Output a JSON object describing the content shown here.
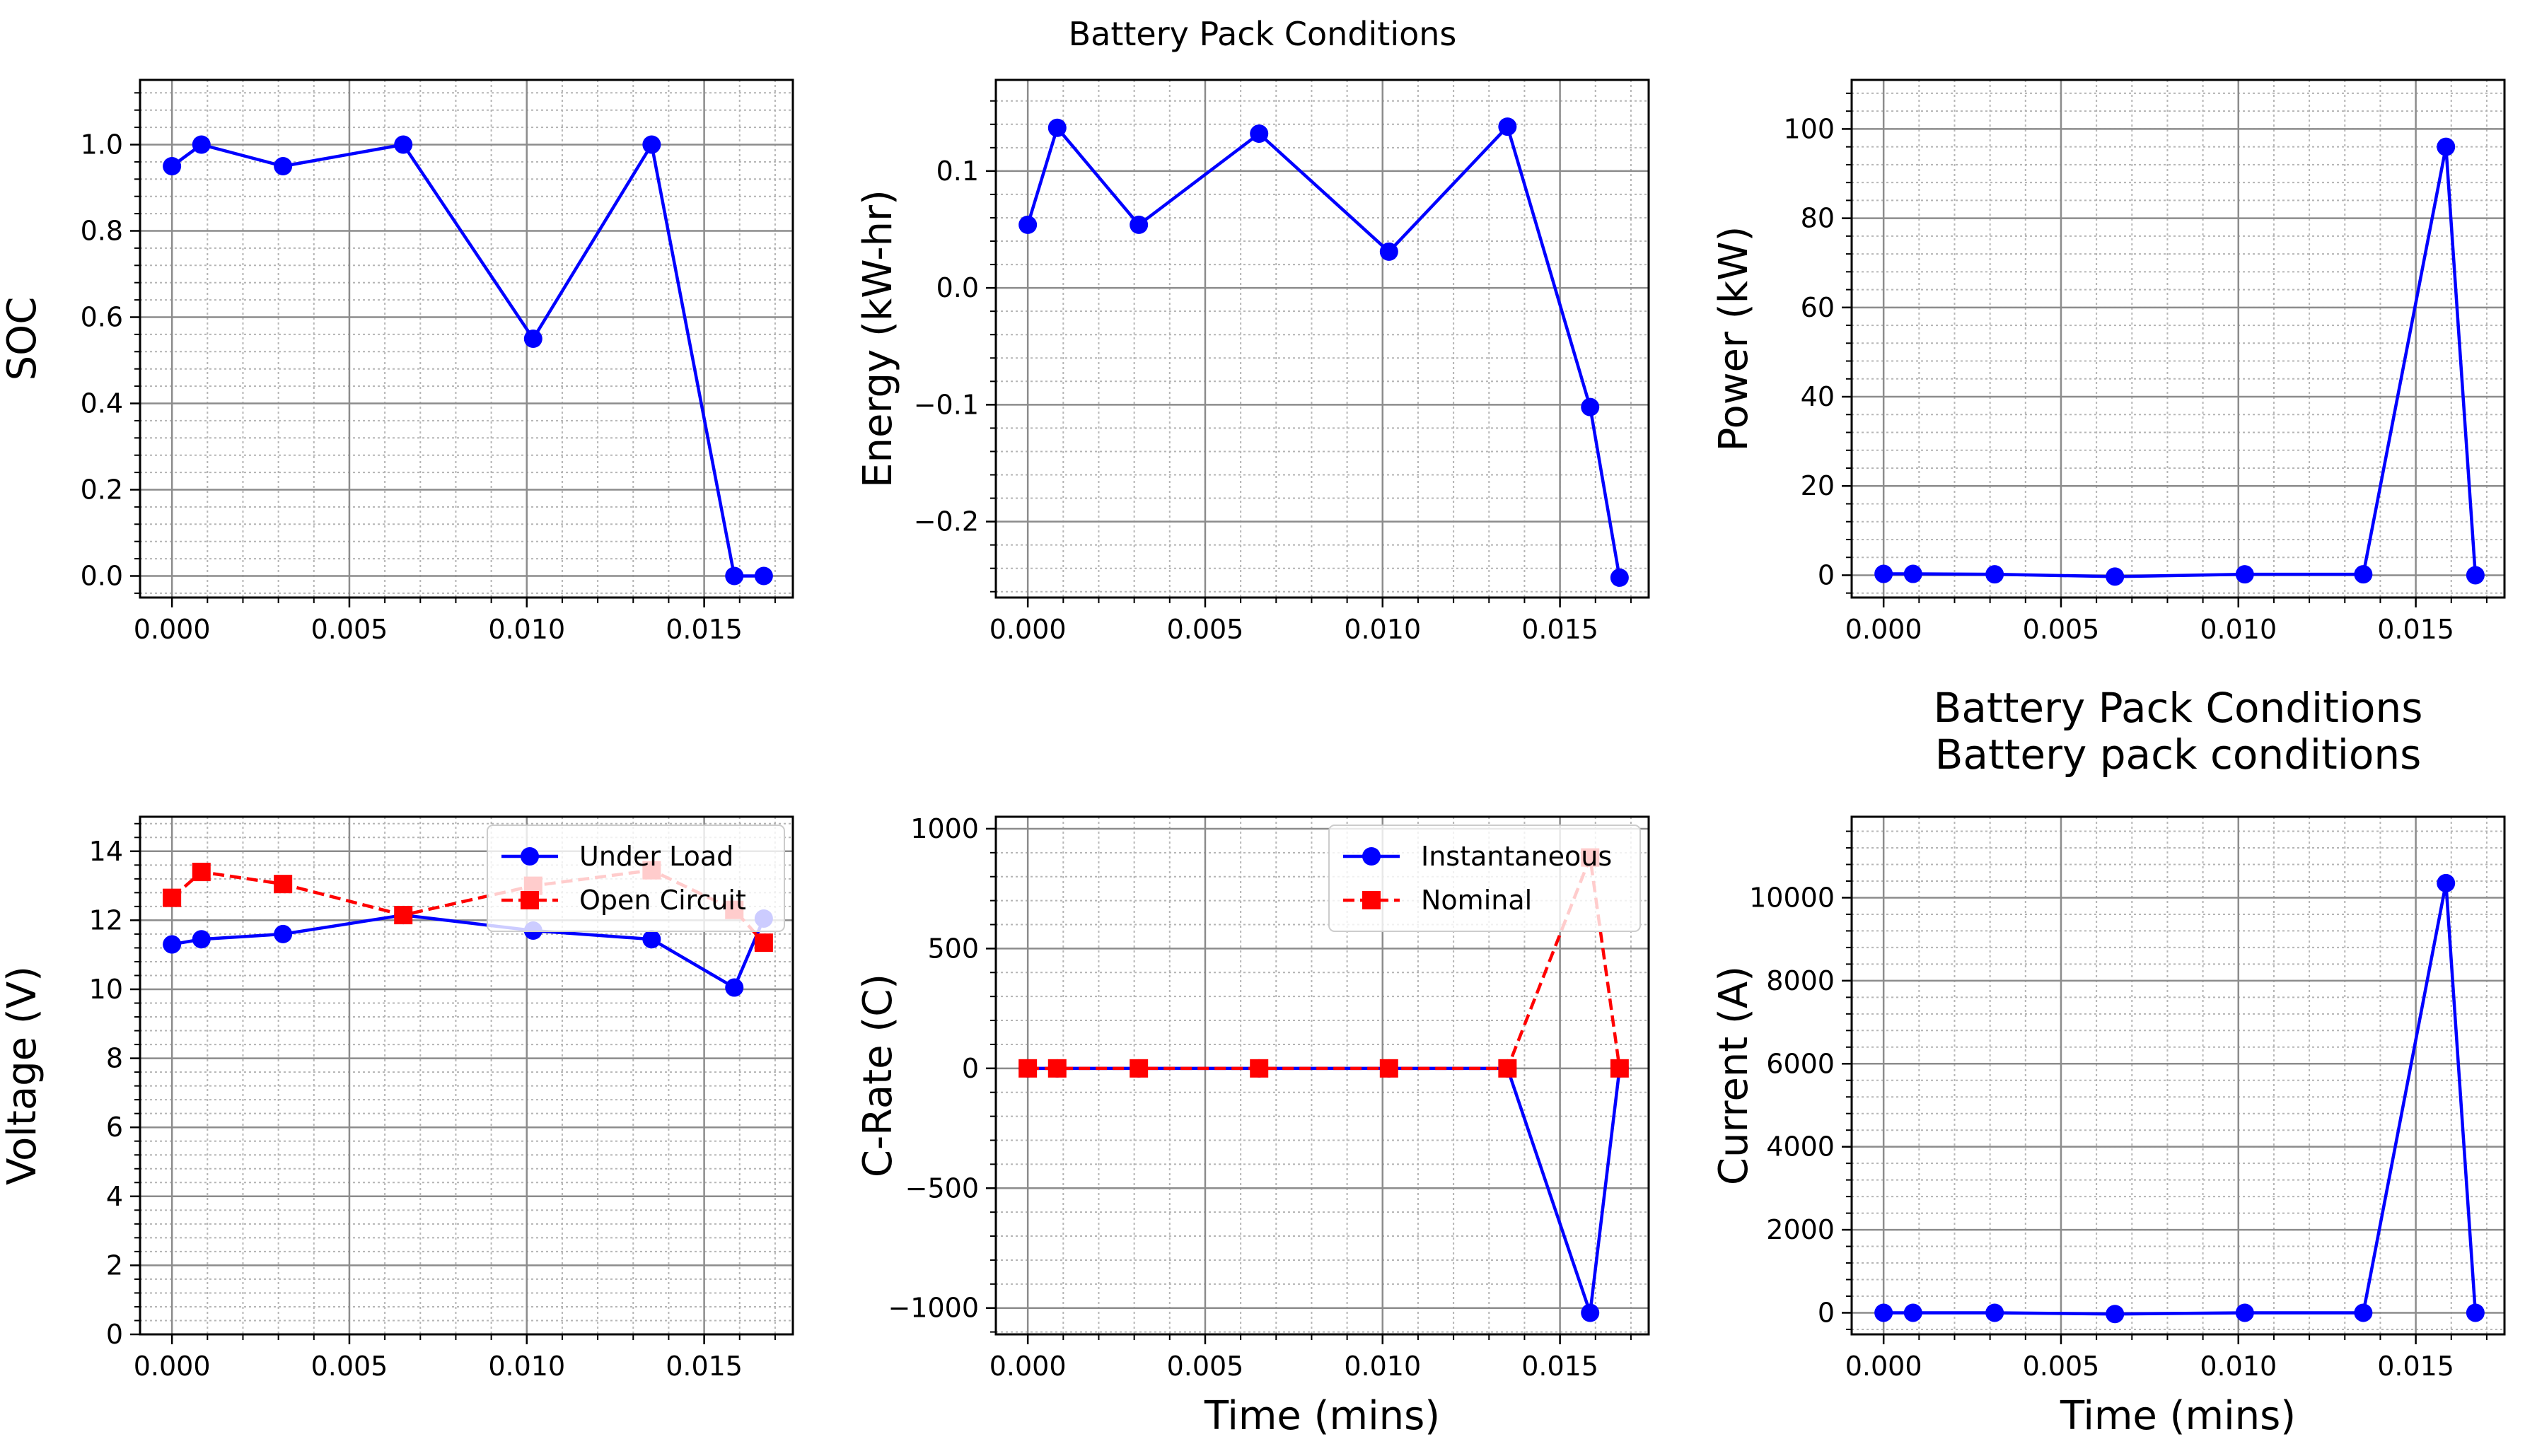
{
  "figure": {
    "suptitle": "Battery Pack Conditions"
  },
  "chart_data": [
    {
      "id": "soc",
      "type": "line",
      "title": "",
      "xlabel": "",
      "ylabel": "SOC",
      "xlim": [
        -0.0009,
        0.0175
      ],
      "ylim": [
        -0.05,
        1.15
      ],
      "xticks": [
        0.0,
        0.005,
        0.01,
        0.015
      ],
      "xtick_labels": [
        "0.000",
        "0.005",
        "0.010",
        "0.015"
      ],
      "yticks": [
        0.0,
        0.2,
        0.4,
        0.6,
        0.8,
        1.0
      ],
      "ytick_labels": [
        "0.0",
        "0.2",
        "0.4",
        "0.6",
        "0.8",
        "1.0"
      ],
      "grid": true,
      "legend": null,
      "series": [
        {
          "name": "",
          "color": "#0000ff",
          "dash": "solid",
          "marker": "circle",
          "x": [
            0.0,
            0.00083,
            0.00313,
            0.00652,
            0.01018,
            0.01352,
            0.01585,
            0.01668
          ],
          "y": [
            0.95,
            1.0,
            0.95,
            1.0,
            0.55,
            1.0,
            0.0,
            0.0
          ]
        }
      ]
    },
    {
      "id": "energy",
      "type": "line",
      "title": "",
      "xlabel": "",
      "ylabel": "Energy (kW-hr)",
      "xlim": [
        -0.0009,
        0.0175
      ],
      "ylim": [
        -0.265,
        0.178
      ],
      "xticks": [
        0.0,
        0.005,
        0.01,
        0.015
      ],
      "xtick_labels": [
        "0.000",
        "0.005",
        "0.010",
        "0.015"
      ],
      "yticks": [
        -0.2,
        -0.1,
        0.0,
        0.1
      ],
      "ytick_labels": [
        "−0.2",
        "−0.1",
        "0.0",
        "0.1"
      ],
      "grid": true,
      "legend": null,
      "series": [
        {
          "name": "",
          "color": "#0000ff",
          "dash": "solid",
          "marker": "circle",
          "x": [
            0.0,
            0.00083,
            0.00313,
            0.00652,
            0.01018,
            0.01352,
            0.01585,
            0.01668
          ],
          "y": [
            0.054,
            0.137,
            0.054,
            0.132,
            0.031,
            0.138,
            -0.102,
            -0.248
          ]
        }
      ]
    },
    {
      "id": "power",
      "type": "line",
      "title": "",
      "xlabel": "",
      "ylabel": "Power (kW)",
      "xlim": [
        -0.0009,
        0.0175
      ],
      "ylim": [
        -5,
        111
      ],
      "xticks": [
        0.0,
        0.005,
        0.01,
        0.015
      ],
      "xtick_labels": [
        "0.000",
        "0.005",
        "0.010",
        "0.015"
      ],
      "yticks": [
        0,
        20,
        40,
        60,
        80,
        100
      ],
      "ytick_labels": [
        "0",
        "20",
        "40",
        "60",
        "80",
        "100"
      ],
      "grid": true,
      "legend": null,
      "series": [
        {
          "name": "",
          "color": "#0000ff",
          "dash": "solid",
          "marker": "circle",
          "x": [
            0.0,
            0.00083,
            0.00313,
            0.00652,
            0.01018,
            0.01352,
            0.01585,
            0.01668
          ],
          "y": [
            0.3,
            0.3,
            0.2,
            -0.3,
            0.2,
            0.2,
            96.0,
            0.0
          ]
        }
      ]
    },
    {
      "id": "voltage",
      "type": "line",
      "title": "",
      "xlabel": "",
      "ylabel": "Voltage (V)",
      "xlim": [
        -0.0009,
        0.0175
      ],
      "ylim": [
        0,
        15
      ],
      "xticks": [
        0.0,
        0.005,
        0.01,
        0.015
      ],
      "xtick_labels": [
        "0.000",
        "0.005",
        "0.010",
        "0.015"
      ],
      "yticks": [
        0,
        2,
        4,
        6,
        8,
        10,
        12,
        14
      ],
      "ytick_labels": [
        "0",
        "2",
        "4",
        "6",
        "8",
        "10",
        "12",
        "14"
      ],
      "grid": true,
      "legend": "upper right",
      "series": [
        {
          "name": "Under Load",
          "color": "#0000ff",
          "dash": "solid",
          "marker": "circle",
          "x": [
            0.0,
            0.00083,
            0.00313,
            0.00652,
            0.01018,
            0.01352,
            0.01585,
            0.01668
          ],
          "y": [
            11.3,
            11.45,
            11.6,
            12.15,
            11.7,
            11.45,
            10.05,
            12.05
          ]
        },
        {
          "name": "Open Circuit",
          "color": "#ff0000",
          "dash": "dashed",
          "marker": "square",
          "x": [
            0.0,
            0.00083,
            0.00313,
            0.00652,
            0.01018,
            0.01352,
            0.01585,
            0.01668
          ],
          "y": [
            12.65,
            13.4,
            13.05,
            12.15,
            13.0,
            13.45,
            12.3,
            11.35
          ]
        }
      ]
    },
    {
      "id": "crate",
      "type": "line",
      "title": "",
      "xlabel": "Time (mins)",
      "ylabel": "C-Rate (C)",
      "xlim": [
        -0.0009,
        0.0175
      ],
      "ylim": [
        -1110,
        1050
      ],
      "xticks": [
        0.0,
        0.005,
        0.01,
        0.015
      ],
      "xtick_labels": [
        "0.000",
        "0.005",
        "0.010",
        "0.015"
      ],
      "yticks": [
        -1000,
        -500,
        0,
        500,
        1000
      ],
      "ytick_labels": [
        "−1000",
        "−500",
        "0",
        "500",
        "1000"
      ],
      "grid": true,
      "legend": "upper right",
      "series": [
        {
          "name": "Instantaneous",
          "color": "#0000ff",
          "dash": "solid",
          "marker": "circle",
          "x": [
            0.0,
            0.00083,
            0.00313,
            0.00652,
            0.01018,
            0.01352,
            0.01585,
            0.01668
          ],
          "y": [
            0,
            0,
            0,
            0,
            0,
            0,
            -1020,
            0
          ]
        },
        {
          "name": "Nominal",
          "color": "#ff0000",
          "dash": "dashed",
          "marker": "square",
          "x": [
            0.0,
            0.00083,
            0.00313,
            0.00652,
            0.01018,
            0.01352,
            0.01585,
            0.01668
          ],
          "y": [
            0,
            0,
            0,
            0,
            0,
            0,
            880,
            0
          ]
        }
      ]
    },
    {
      "id": "current",
      "type": "line",
      "title": "Battery Pack Conditions\nBattery pack conditions",
      "xlabel": "Time (mins)",
      "ylabel": "Current (A)",
      "xlim": [
        -0.0009,
        0.0175
      ],
      "ylim": [
        -520,
        11950
      ],
      "xticks": [
        0.0,
        0.005,
        0.01,
        0.015
      ],
      "xtick_labels": [
        "0.000",
        "0.005",
        "0.010",
        "0.015"
      ],
      "yticks": [
        0,
        2000,
        4000,
        6000,
        8000,
        10000
      ],
      "ytick_labels": [
        "0",
        "2000",
        "4000",
        "6000",
        "8000",
        "10000"
      ],
      "grid": true,
      "legend": null,
      "series": [
        {
          "name": "",
          "color": "#0000ff",
          "dash": "solid",
          "marker": "circle",
          "x": [
            0.0,
            0.00083,
            0.00313,
            0.00652,
            0.01018,
            0.01352,
            0.01585,
            0.01668
          ],
          "y": [
            0,
            0,
            0,
            -30,
            0,
            0,
            10350,
            0
          ]
        }
      ]
    }
  ]
}
